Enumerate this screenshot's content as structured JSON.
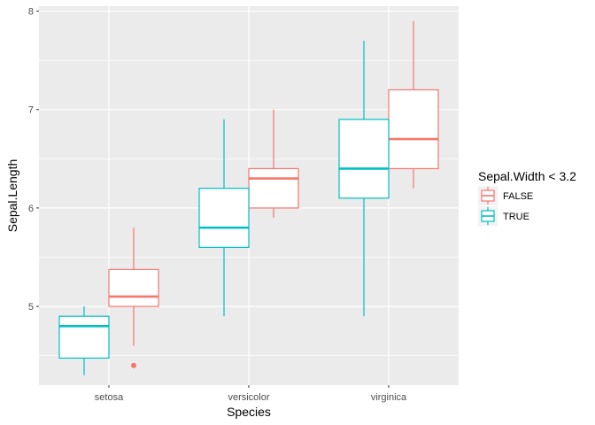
{
  "chart_data": {
    "type": "boxplot",
    "xlabel": "Species",
    "ylabel": "Sepal.Length",
    "categories": [
      "setosa",
      "versicolor",
      "virginica"
    ],
    "ylim": [
      4.2,
      8.05
    ],
    "yticks": [
      5,
      6,
      7,
      8
    ],
    "grid": true,
    "legend": {
      "title": "Sepal.Width < 3.2",
      "position": "right",
      "entries": [
        "FALSE",
        "TRUE"
      ]
    },
    "series": [
      {
        "name": "FALSE",
        "color": "#F8766D",
        "boxes": [
          {
            "category": "setosa",
            "whisker_low": 4.6,
            "q1": 5.0,
            "median": 5.1,
            "q3": 5.375,
            "whisker_high": 5.8,
            "outliers": [
              4.4
            ]
          },
          {
            "category": "versicolor",
            "whisker_low": 5.9,
            "q1": 6.0,
            "median": 6.3,
            "q3": 6.4,
            "whisker_high": 7.0,
            "outliers": []
          },
          {
            "category": "virginica",
            "whisker_low": 6.2,
            "q1": 6.4,
            "median": 6.7,
            "q3": 7.2,
            "whisker_high": 7.9,
            "outliers": []
          }
        ]
      },
      {
        "name": "TRUE",
        "color": "#00BFC4",
        "boxes": [
          {
            "category": "setosa",
            "whisker_low": 4.3,
            "q1": 4.475,
            "median": 4.8,
            "q3": 4.9,
            "whisker_high": 5.0,
            "outliers": []
          },
          {
            "category": "versicolor",
            "whisker_low": 4.9,
            "q1": 5.6,
            "median": 5.8,
            "q3": 6.2,
            "whisker_high": 6.9,
            "outliers": []
          },
          {
            "category": "virginica",
            "whisker_low": 4.9,
            "q1": 6.1,
            "median": 6.4,
            "q3": 6.9,
            "whisker_high": 7.7,
            "outliers": []
          }
        ]
      }
    ],
    "colors": {
      "panel_background": "#EBEBEB",
      "grid_line": "#FFFFFF",
      "box_fill": "#FFFFFF"
    }
  }
}
